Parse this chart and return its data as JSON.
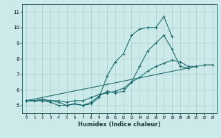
{
  "title": "",
  "xlabel": "Humidex (Indice chaleur)",
  "ylabel": "",
  "bg_color": "#cceaea",
  "line_color": "#1a6b6b",
  "grid_color": "#aacccc",
  "xlim": [
    -0.5,
    23.5
  ],
  "ylim": [
    4.5,
    11.5
  ],
  "xticks": [
    0,
    1,
    2,
    3,
    4,
    5,
    6,
    7,
    8,
    9,
    10,
    11,
    12,
    13,
    14,
    15,
    16,
    17,
    18,
    19,
    20,
    21,
    22,
    23
  ],
  "yticks": [
    5,
    6,
    7,
    8,
    9,
    10,
    11
  ],
  "series": [
    [
      5.3,
      5.3,
      5.3,
      5.3,
      5.2,
      5.0,
      5.1,
      5.0,
      5.1,
      5.5,
      6.9,
      7.8,
      8.3,
      9.5,
      9.9,
      10.0,
      10.0,
      10.7,
      9.4,
      null,
      null,
      null,
      null,
      null
    ],
    [
      5.3,
      5.3,
      5.3,
      5.2,
      5.0,
      5.0,
      5.1,
      5.0,
      5.2,
      5.6,
      5.9,
      5.8,
      5.9,
      6.5,
      7.5,
      8.5,
      9.0,
      9.5,
      8.6,
      7.5,
      7.4,
      null,
      null,
      null
    ],
    [
      5.3,
      5.3,
      5.4,
      5.3,
      5.3,
      5.2,
      5.3,
      5.3,
      5.5,
      5.7,
      5.8,
      5.9,
      6.1,
      6.5,
      6.8,
      7.2,
      7.5,
      7.7,
      7.9,
      7.8,
      7.5,
      7.5,
      null,
      null
    ],
    [
      5.3,
      null,
      null,
      null,
      null,
      null,
      null,
      null,
      null,
      null,
      null,
      null,
      null,
      null,
      null,
      null,
      null,
      null,
      null,
      null,
      null,
      7.5,
      7.6,
      7.6
    ]
  ]
}
